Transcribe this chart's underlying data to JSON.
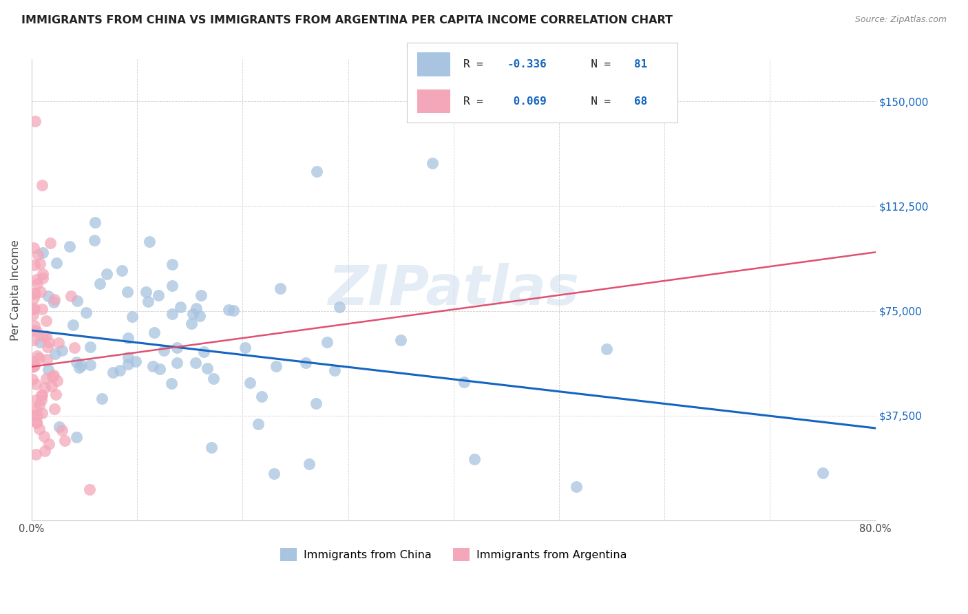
{
  "title": "IMMIGRANTS FROM CHINA VS IMMIGRANTS FROM ARGENTINA PER CAPITA INCOME CORRELATION CHART",
  "source": "Source: ZipAtlas.com",
  "ylabel": "Per Capita Income",
  "xlim": [
    0,
    0.8
  ],
  "ylim": [
    0,
    165000
  ],
  "yticks": [
    0,
    37500,
    75000,
    112500,
    150000
  ],
  "ytick_labels": [
    "",
    "$37,500",
    "$75,000",
    "$112,500",
    "$150,000"
  ],
  "china_color": "#a8c4e0",
  "argentina_color": "#f4a7b9",
  "china_line_color": "#1565C0",
  "argentina_line_color": "#e05070",
  "r_china": -0.336,
  "n_china": 81,
  "r_argentina": 0.069,
  "n_argentina": 68,
  "watermark": "ZIPatlas",
  "background_color": "#ffffff",
  "china_trend": [
    68000,
    33000
  ],
  "argentina_trend": [
    55000,
    96000
  ],
  "seed_china": 42,
  "seed_argentina": 99
}
